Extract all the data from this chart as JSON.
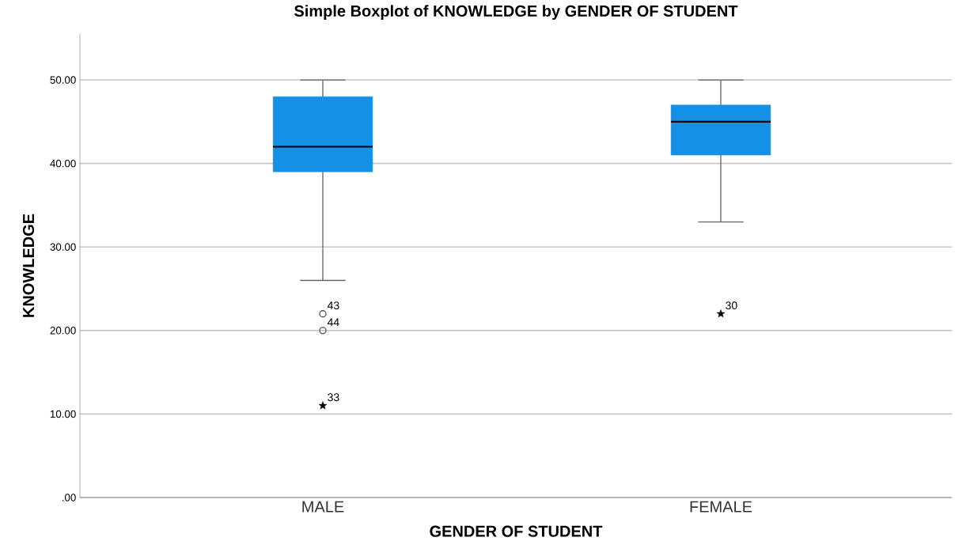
{
  "chart_data": {
    "type": "box",
    "title": "Simple Boxplot of KNOWLEDGE by GENDER OF STUDENT",
    "xlabel": "GENDER OF STUDENT",
    "ylabel": "KNOWLEDGE",
    "categories": [
      "MALE",
      "FEMALE"
    ],
    "series": [
      {
        "color": "#1490e6",
        "boxes": [
          {
            "low": 26,
            "q1": 39,
            "median": 42,
            "q3": 48,
            "high": 50
          },
          {
            "low": 33,
            "q1": 41,
            "median": 45,
            "q3": 47,
            "high": 50
          }
        ]
      },
      {
        "type": "scatter",
        "x": [
          "MALE",
          "MALE"
        ],
        "values": [
          22,
          20
        ],
        "marker": "circle",
        "color": "#555555"
      },
      {
        "type": "scatter",
        "x": [
          "MALE",
          "FEMALE"
        ],
        "values": [
          11,
          22
        ],
        "marker": "star",
        "color": "#000000"
      }
    ],
    "ylim": [
      0,
      55.5
    ],
    "yticks": [
      {
        "value": 0,
        "label": ".00"
      },
      {
        "value": 10,
        "label": "10.00"
      },
      {
        "value": 20,
        "label": "20.00"
      },
      {
        "value": 30,
        "label": "30.00"
      },
      {
        "value": 40,
        "label": "40.00"
      },
      {
        "value": 50,
        "label": "50.00"
      }
    ],
    "grid": "y",
    "annotations": [
      {
        "text": "43",
        "x": "MALE",
        "y": 22
      },
      {
        "text": "44",
        "x": "MALE",
        "y": 20
      },
      {
        "text": "33",
        "x": "MALE",
        "y": 11
      },
      {
        "text": "30",
        "x": "FEMALE",
        "y": 22
      }
    ]
  }
}
